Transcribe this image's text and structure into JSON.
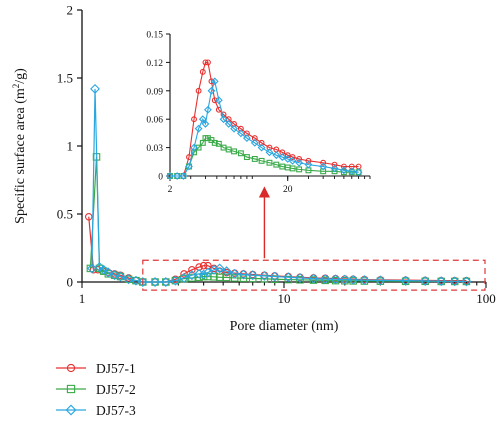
{
  "chart_data": {
    "type": "line",
    "xlabel": "Pore diameter (nm)",
    "ylabel_main": "Specific surface area (m",
    "ylabel_sup": "2",
    "ylabel_tail": "/g)",
    "x_scale": "log",
    "xlim": [
      1,
      100
    ],
    "ylim": [
      0,
      2
    ],
    "xticks": [
      1,
      10,
      100
    ],
    "yticks": [
      0,
      0.5,
      1,
      1.5,
      2
    ],
    "ytick_labels": [
      "0",
      "0.5",
      "1",
      "1.5",
      "2"
    ],
    "grid": false,
    "legend_position": "bottom-left",
    "annotation": "dashed box from 2 to 100 nm magnified in inset",
    "series": [
      {
        "name": "DJ57-1",
        "color": "#e8302f",
        "marker": "circle",
        "x": [
          1.08,
          1.14,
          1.2,
          1.27,
          1.35,
          1.45,
          1.55,
          1.7,
          1.85,
          2.0,
          2.3,
          2.6,
          2.9,
          3.2,
          3.5,
          3.8,
          4.0,
          4.2,
          4.5,
          4.8,
          5.2,
          5.7,
          6.3,
          7.0,
          8.0,
          9.0,
          10.5,
          12,
          14,
          16,
          18,
          20,
          22,
          25,
          30,
          40,
          50,
          60,
          70,
          80
        ],
        "y": [
          0.48,
          0.09,
          0.09,
          0.08,
          0.07,
          0.06,
          0.05,
          0.03,
          0.01,
          0.0,
          0.0,
          0.0,
          0.02,
          0.06,
          0.09,
          0.11,
          0.12,
          0.12,
          0.1,
          0.08,
          0.07,
          0.065,
          0.06,
          0.055,
          0.05,
          0.045,
          0.04,
          0.035,
          0.03,
          0.028,
          0.025,
          0.022,
          0.02,
          0.018,
          0.016,
          0.014,
          0.012,
          0.01,
          0.01,
          0.01
        ]
      },
      {
        "name": "DJ57-2",
        "color": "#3aaa49",
        "marker": "square",
        "x": [
          1.1,
          1.18,
          1.22,
          1.28,
          1.35,
          1.45,
          1.55,
          1.7,
          1.85,
          2.0,
          2.3,
          2.6,
          2.9,
          3.2,
          3.5,
          3.8,
          4.0,
          4.2,
          4.5,
          4.8,
          5.2,
          5.7,
          6.3,
          7.0,
          8.0,
          9.0,
          10.5,
          12,
          14,
          16,
          18,
          20,
          22,
          25,
          30,
          40,
          50,
          60,
          70,
          80
        ],
        "y": [
          0.1,
          0.92,
          0.1,
          0.08,
          0.06,
          0.05,
          0.04,
          0.02,
          0.01,
          0.0,
          0.0,
          0.0,
          0.01,
          0.025,
          0.03,
          0.035,
          0.04,
          0.04,
          0.038,
          0.035,
          0.034,
          0.03,
          0.028,
          0.026,
          0.024,
          0.02,
          0.018,
          0.016,
          0.014,
          0.012,
          0.01,
          0.009,
          0.008,
          0.007,
          0.006,
          0.005,
          0.005,
          0.004,
          0.004,
          0.004
        ]
      },
      {
        "name": "DJ57-3",
        "color": "#2aa6e0",
        "marker": "diamond",
        "x": [
          1.12,
          1.16,
          1.22,
          1.28,
          1.35,
          1.45,
          1.55,
          1.7,
          1.85,
          2.0,
          2.3,
          2.6,
          2.9,
          3.2,
          3.5,
          3.8,
          4.0,
          4.2,
          4.5,
          4.8,
          5.2,
          5.7,
          6.3,
          7.0,
          8.0,
          9.0,
          10.5,
          12,
          14,
          16,
          18,
          20,
          22,
          25,
          30,
          40,
          50,
          60,
          70,
          80
        ],
        "y": [
          0.1,
          1.42,
          0.11,
          0.09,
          0.07,
          0.05,
          0.04,
          0.02,
          0.01,
          0.0,
          0.0,
          0.0,
          0.01,
          0.03,
          0.05,
          0.06,
          0.055,
          0.07,
          0.09,
          0.1,
          0.08,
          0.06,
          0.055,
          0.05,
          0.045,
          0.04,
          0.035,
          0.03,
          0.025,
          0.022,
          0.02,
          0.018,
          0.016,
          0.014,
          0.012,
          0.01,
          0.008,
          0.006,
          0.005,
          0.004
        ]
      }
    ],
    "inset": {
      "x_scale": "log",
      "xlim": [
        2,
        100
      ],
      "ylim": [
        0,
        0.15
      ],
      "xticks": [
        2,
        20
      ],
      "yticks": [
        0,
        0.03,
        0.06,
        0.09,
        0.12,
        0.15
      ],
      "ytick_labels": [
        "0",
        "0.03",
        "0.06",
        "0.09",
        "0.12",
        "0.15"
      ]
    }
  }
}
